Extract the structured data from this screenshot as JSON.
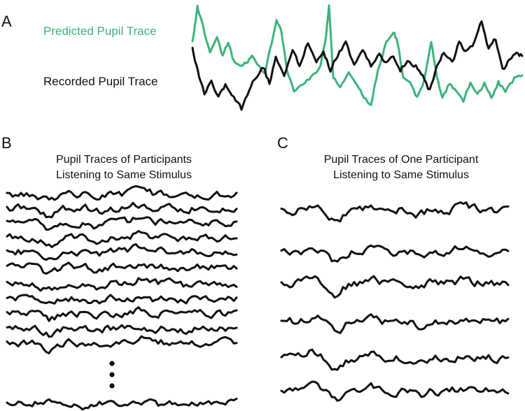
{
  "colors": {
    "predicted": "#3db37a",
    "recorded": "#111111",
    "text": "#111111"
  },
  "panel_a": {
    "letter": "A",
    "predicted_label": "Predicted Pupil Trace",
    "recorded_label": "Recorded Pupil Trace"
  },
  "panel_b": {
    "letter": "B",
    "title_line1": "Pupil Traces of Participants",
    "title_line2": "Listening to Same Stimulus",
    "trace_count": 11
  },
  "panel_c": {
    "letter": "C",
    "title_line1": "Pupil Traces of One Participant",
    "title_line2": "Listening to Same Stimulus",
    "trace_count": 6
  }
}
